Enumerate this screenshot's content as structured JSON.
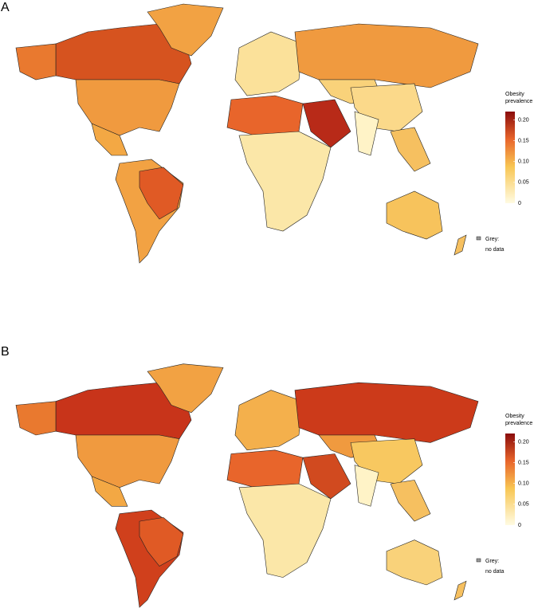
{
  "panels": [
    {
      "label": "A",
      "legend": {
        "title": [
          "Obesity",
          "prevalence"
        ],
        "range": [
          0,
          0.22
        ],
        "ticks": [
          {
            "value": 0.2,
            "label": "0.20"
          },
          0.15,
          {
            "value": 0.1,
            "label": "0.10"
          },
          0.05,
          0
        ],
        "note": [
          "Grey:",
          "no data"
        ]
      }
    },
    {
      "label": "B",
      "legend": {
        "title": [
          "Obesity",
          "prevalence"
        ],
        "range": [
          0,
          0.22
        ],
        "ticks": [
          {
            "value": 0.2,
            "label": "0.20"
          },
          0.15,
          {
            "value": 0.1,
            "label": "0.10"
          },
          0.05,
          0
        ],
        "note": [
          "Grey:",
          "no data"
        ]
      }
    }
  ]
}
